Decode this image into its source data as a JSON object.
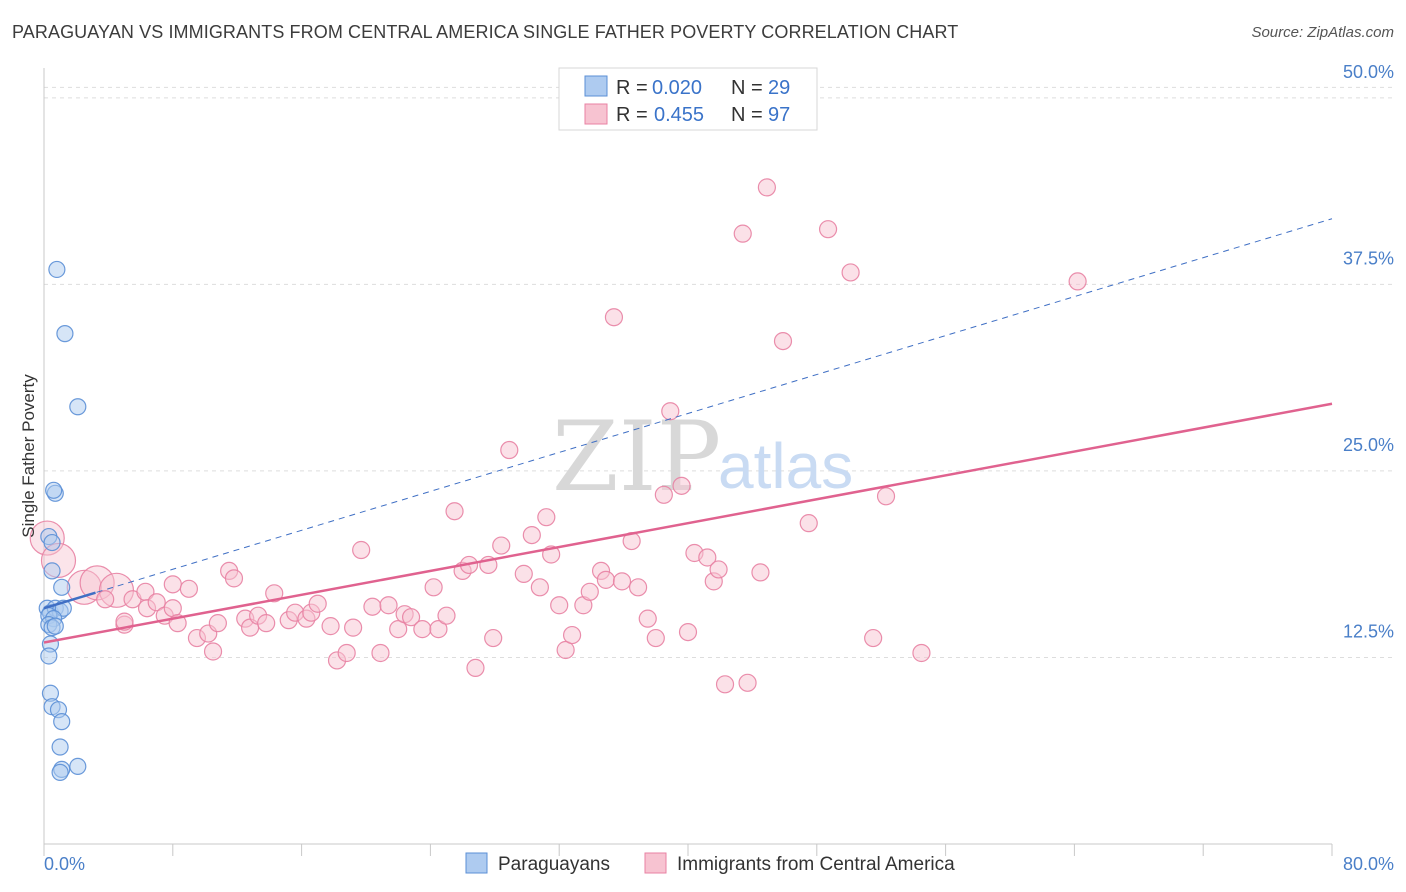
{
  "header": {
    "title": "PARAGUAYAN VS IMMIGRANTS FROM CENTRAL AMERICA SINGLE FATHER POVERTY CORRELATION CHART",
    "source": "Source: ZipAtlas.com"
  },
  "watermark": {
    "part1": "ZIP",
    "part2": "atlas"
  },
  "legend_top": {
    "rows": [
      {
        "r_label": "R =",
        "r_value": "0.020",
        "n_label": "N =",
        "n_value": "29"
      },
      {
        "r_label": "R =",
        "r_value": "0.455",
        "n_label": "N =",
        "n_value": "97"
      }
    ]
  },
  "legend_bottom": {
    "items": [
      "Paraguayans",
      "Immigrants from Central America"
    ]
  },
  "colors": {
    "blue_fill": "#aecbf0",
    "blue_stroke": "#5b8fd6",
    "blue_line": "#3f6fc4",
    "pink_fill": "#f7c3d1",
    "pink_stroke": "#e882a3",
    "pink_line": "#e0628f",
    "tick_text": "#4a7fc8",
    "grid": "#dddddd"
  },
  "chart_data": {
    "type": "scatter",
    "title": "PARAGUAYAN VS IMMIGRANTS FROM CENTRAL AMERICA SINGLE FATHER POVERTY CORRELATION CHART",
    "xlabel": "",
    "ylabel": "Single Father Poverty",
    "xlim": [
      0,
      80
    ],
    "ylim": [
      0,
      52
    ],
    "x_tick_labels": [
      "0.0%",
      "80.0%"
    ],
    "y_ticks": [
      12.5,
      25.0,
      37.5,
      50.0
    ],
    "y_tick_labels": [
      "12.5%",
      "25.0%",
      "37.5%",
      "50.0%"
    ],
    "grid": "horizontal dashed",
    "legend_position": "top-center",
    "series": [
      {
        "name": "Paraguayans",
        "R": 0.02,
        "N": 29,
        "trend": {
          "x": [
            0,
            80
          ],
          "y": [
            15.8,
            41.9
          ],
          "style": "dashed",
          "solid_until_x": 3.2
        },
        "points": [
          {
            "x": 0.8,
            "y": 38.5
          },
          {
            "x": 1.3,
            "y": 34.2
          },
          {
            "x": 2.1,
            "y": 29.3
          },
          {
            "x": 0.7,
            "y": 23.5
          },
          {
            "x": 0.6,
            "y": 23.7
          },
          {
            "x": 0.3,
            "y": 20.6
          },
          {
            "x": 0.5,
            "y": 20.2
          },
          {
            "x": 0.5,
            "y": 18.3
          },
          {
            "x": 1.1,
            "y": 17.2
          },
          {
            "x": 0.2,
            "y": 15.8
          },
          {
            "x": 0.4,
            "y": 15.5
          },
          {
            "x": 0.7,
            "y": 15.8
          },
          {
            "x": 1.0,
            "y": 15.6
          },
          {
            "x": 1.2,
            "y": 15.8
          },
          {
            "x": 0.3,
            "y": 15.3
          },
          {
            "x": 0.6,
            "y": 15.1
          },
          {
            "x": 0.3,
            "y": 14.7
          },
          {
            "x": 0.5,
            "y": 14.5
          },
          {
            "x": 0.7,
            "y": 14.6
          },
          {
            "x": 0.4,
            "y": 13.4
          },
          {
            "x": 0.3,
            "y": 12.6
          },
          {
            "x": 0.4,
            "y": 10.1
          },
          {
            "x": 0.5,
            "y": 9.2
          },
          {
            "x": 0.9,
            "y": 9.0
          },
          {
            "x": 1.1,
            "y": 8.2
          },
          {
            "x": 1.0,
            "y": 6.5
          },
          {
            "x": 1.1,
            "y": 5.0
          },
          {
            "x": 1.0,
            "y": 4.8
          },
          {
            "x": 2.1,
            "y": 5.2
          }
        ]
      },
      {
        "name": "Immigrants from Central America",
        "R": 0.455,
        "N": 97,
        "trend": {
          "x": [
            0,
            80
          ],
          "y": [
            13.5,
            29.5
          ],
          "style": "solid"
        },
        "points": [
          {
            "x": 0.2,
            "y": 20.5,
            "big": true
          },
          {
            "x": 0.9,
            "y": 19.0,
            "big": true
          },
          {
            "x": 2.5,
            "y": 17.2,
            "big": true
          },
          {
            "x": 3.3,
            "y": 17.5,
            "big": true
          },
          {
            "x": 4.5,
            "y": 17.0,
            "big": true
          },
          {
            "x": 3.8,
            "y": 16.4
          },
          {
            "x": 5.5,
            "y": 16.4
          },
          {
            "x": 6.3,
            "y": 16.9
          },
          {
            "x": 8.0,
            "y": 17.4
          },
          {
            "x": 9.0,
            "y": 17.1
          },
          {
            "x": 6.4,
            "y": 15.8
          },
          {
            "x": 7.0,
            "y": 16.2
          },
          {
            "x": 7.5,
            "y": 15.3
          },
          {
            "x": 8.0,
            "y": 15.8
          },
          {
            "x": 5.0,
            "y": 14.7
          },
          {
            "x": 5.0,
            "y": 14.9
          },
          {
            "x": 8.3,
            "y": 14.8
          },
          {
            "x": 9.5,
            "y": 13.8
          },
          {
            "x": 10.2,
            "y": 14.1
          },
          {
            "x": 10.5,
            "y": 12.9
          },
          {
            "x": 10.8,
            "y": 14.8
          },
          {
            "x": 11.5,
            "y": 18.3
          },
          {
            "x": 11.8,
            "y": 17.8
          },
          {
            "x": 12.5,
            "y": 15.1
          },
          {
            "x": 12.8,
            "y": 14.5
          },
          {
            "x": 13.3,
            "y": 15.3
          },
          {
            "x": 13.8,
            "y": 14.8
          },
          {
            "x": 14.3,
            "y": 16.8
          },
          {
            "x": 15.2,
            "y": 15.0
          },
          {
            "x": 15.6,
            "y": 15.5
          },
          {
            "x": 16.3,
            "y": 15.1
          },
          {
            "x": 16.6,
            "y": 15.5
          },
          {
            "x": 17.0,
            "y": 16.1
          },
          {
            "x": 17.8,
            "y": 14.6
          },
          {
            "x": 18.2,
            "y": 12.3
          },
          {
            "x": 18.8,
            "y": 12.8
          },
          {
            "x": 19.2,
            "y": 14.5
          },
          {
            "x": 19.7,
            "y": 19.7
          },
          {
            "x": 20.4,
            "y": 15.9
          },
          {
            "x": 20.9,
            "y": 12.8
          },
          {
            "x": 21.4,
            "y": 16.0
          },
          {
            "x": 22.0,
            "y": 14.4
          },
          {
            "x": 22.4,
            "y": 15.4
          },
          {
            "x": 22.8,
            "y": 15.2
          },
          {
            "x": 23.5,
            "y": 14.4
          },
          {
            "x": 24.2,
            "y": 17.2
          },
          {
            "x": 24.5,
            "y": 14.4
          },
          {
            "x": 25.0,
            "y": 15.3
          },
          {
            "x": 25.5,
            "y": 22.3
          },
          {
            "x": 26.0,
            "y": 18.3
          },
          {
            "x": 26.4,
            "y": 18.7
          },
          {
            "x": 26.8,
            "y": 11.8
          },
          {
            "x": 27.6,
            "y": 18.7
          },
          {
            "x": 27.9,
            "y": 13.8
          },
          {
            "x": 28.4,
            "y": 20.0
          },
          {
            "x": 28.9,
            "y": 26.4
          },
          {
            "x": 29.8,
            "y": 18.1
          },
          {
            "x": 30.3,
            "y": 20.7
          },
          {
            "x": 30.8,
            "y": 17.2
          },
          {
            "x": 31.2,
            "y": 21.9
          },
          {
            "x": 31.5,
            "y": 19.4
          },
          {
            "x": 32.0,
            "y": 16.0
          },
          {
            "x": 32.4,
            "y": 13.0
          },
          {
            "x": 32.8,
            "y": 14.0
          },
          {
            "x": 33.5,
            "y": 16.0
          },
          {
            "x": 33.9,
            "y": 16.9
          },
          {
            "x": 34.6,
            "y": 18.3
          },
          {
            "x": 34.9,
            "y": 17.7
          },
          {
            "x": 35.4,
            "y": 35.3
          },
          {
            "x": 35.9,
            "y": 17.6
          },
          {
            "x": 36.5,
            "y": 20.3
          },
          {
            "x": 36.9,
            "y": 17.2
          },
          {
            "x": 37.5,
            "y": 15.1
          },
          {
            "x": 38.0,
            "y": 13.8
          },
          {
            "x": 38.5,
            "y": 23.4
          },
          {
            "x": 38.9,
            "y": 29.0
          },
          {
            "x": 39.6,
            "y": 24.0
          },
          {
            "x": 40.0,
            "y": 14.2
          },
          {
            "x": 40.4,
            "y": 19.5
          },
          {
            "x": 41.2,
            "y": 19.2
          },
          {
            "x": 41.6,
            "y": 17.6
          },
          {
            "x": 41.9,
            "y": 18.4
          },
          {
            "x": 42.3,
            "y": 10.7
          },
          {
            "x": 43.7,
            "y": 10.8
          },
          {
            "x": 43.4,
            "y": 40.9
          },
          {
            "x": 44.5,
            "y": 18.2
          },
          {
            "x": 44.9,
            "y": 44.0
          },
          {
            "x": 45.9,
            "y": 33.7
          },
          {
            "x": 47.5,
            "y": 21.5
          },
          {
            "x": 48.7,
            "y": 41.2
          },
          {
            "x": 50.1,
            "y": 38.3
          },
          {
            "x": 51.5,
            "y": 13.8
          },
          {
            "x": 52.3,
            "y": 23.3
          },
          {
            "x": 54.5,
            "y": 12.8
          },
          {
            "x": 64.2,
            "y": 37.7
          }
        ]
      }
    ]
  }
}
